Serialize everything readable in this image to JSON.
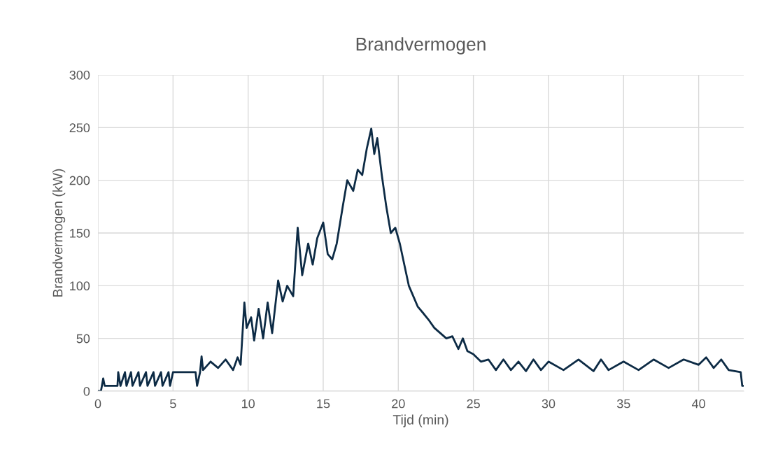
{
  "chart_data": {
    "type": "line",
    "title": "Brandvermogen",
    "xlabel": "Tijd (min)",
    "ylabel": "Brandvermogen (kW)",
    "xlim": [
      0,
      43
    ],
    "xticks": [
      0,
      5,
      10,
      15,
      20,
      25,
      30,
      35,
      40
    ],
    "ylim": [
      0,
      300
    ],
    "yticks": [
      0,
      50,
      100,
      150,
      200,
      250,
      300
    ],
    "grid": true,
    "series": [
      {
        "color": "#0d2b45",
        "x": [
          0,
          0.2,
          0.35,
          0.45,
          1.0,
          1.3,
          1.35,
          1.5,
          1.8,
          1.9,
          2.2,
          2.3,
          2.7,
          2.8,
          3.2,
          3.3,
          3.7,
          3.8,
          4.2,
          4.3,
          4.7,
          4.8,
          5.0,
          6.5,
          6.6,
          6.8,
          6.9,
          7.0,
          7.5,
          8.0,
          8.5,
          9.0,
          9.3,
          9.5,
          9.75,
          9.9,
          10.2,
          10.4,
          10.7,
          11.0,
          11.3,
          11.6,
          12.0,
          12.3,
          12.6,
          13.0,
          13.3,
          13.6,
          14.0,
          14.3,
          14.6,
          15.0,
          15.3,
          15.6,
          15.9,
          16.3,
          16.6,
          17.0,
          17.3,
          17.6,
          17.9,
          18.2,
          18.4,
          18.6,
          18.9,
          19.2,
          19.5,
          19.8,
          20.1,
          20.4,
          20.7,
          21.0,
          21.3,
          21.6,
          22.0,
          22.4,
          22.8,
          23.2,
          23.6,
          24.0,
          24.3,
          24.6,
          25.0,
          25.5,
          26.0,
          26.5,
          27.0,
          27.5,
          28.0,
          28.5,
          29.0,
          29.5,
          30.0,
          31.0,
          32.0,
          33.0,
          33.5,
          34.0,
          35.0,
          36.0,
          37.0,
          38.0,
          39.0,
          40.0,
          40.5,
          41.0,
          41.5,
          42.0,
          42.8,
          42.9,
          43.0
        ],
        "values": [
          0,
          0,
          12,
          5,
          5,
          5,
          18,
          5,
          18,
          5,
          18,
          5,
          18,
          5,
          18,
          5,
          18,
          5,
          18,
          5,
          18,
          5,
          18,
          18,
          5,
          18,
          33,
          20,
          28,
          22,
          30,
          20,
          32,
          25,
          84,
          60,
          70,
          48,
          78,
          50,
          84,
          55,
          105,
          85,
          100,
          90,
          155,
          110,
          140,
          120,
          145,
          160,
          130,
          125,
          140,
          175,
          200,
          190,
          210,
          205,
          230,
          249,
          225,
          240,
          205,
          175,
          150,
          155,
          140,
          120,
          100,
          90,
          80,
          75,
          68,
          60,
          55,
          50,
          52,
          40,
          50,
          38,
          35,
          28,
          30,
          20,
          30,
          20,
          28,
          19,
          30,
          20,
          28,
          20,
          30,
          19,
          30,
          20,
          28,
          20,
          30,
          22,
          30,
          25,
          32,
          22,
          30,
          20,
          18,
          5,
          5
        ]
      }
    ]
  }
}
